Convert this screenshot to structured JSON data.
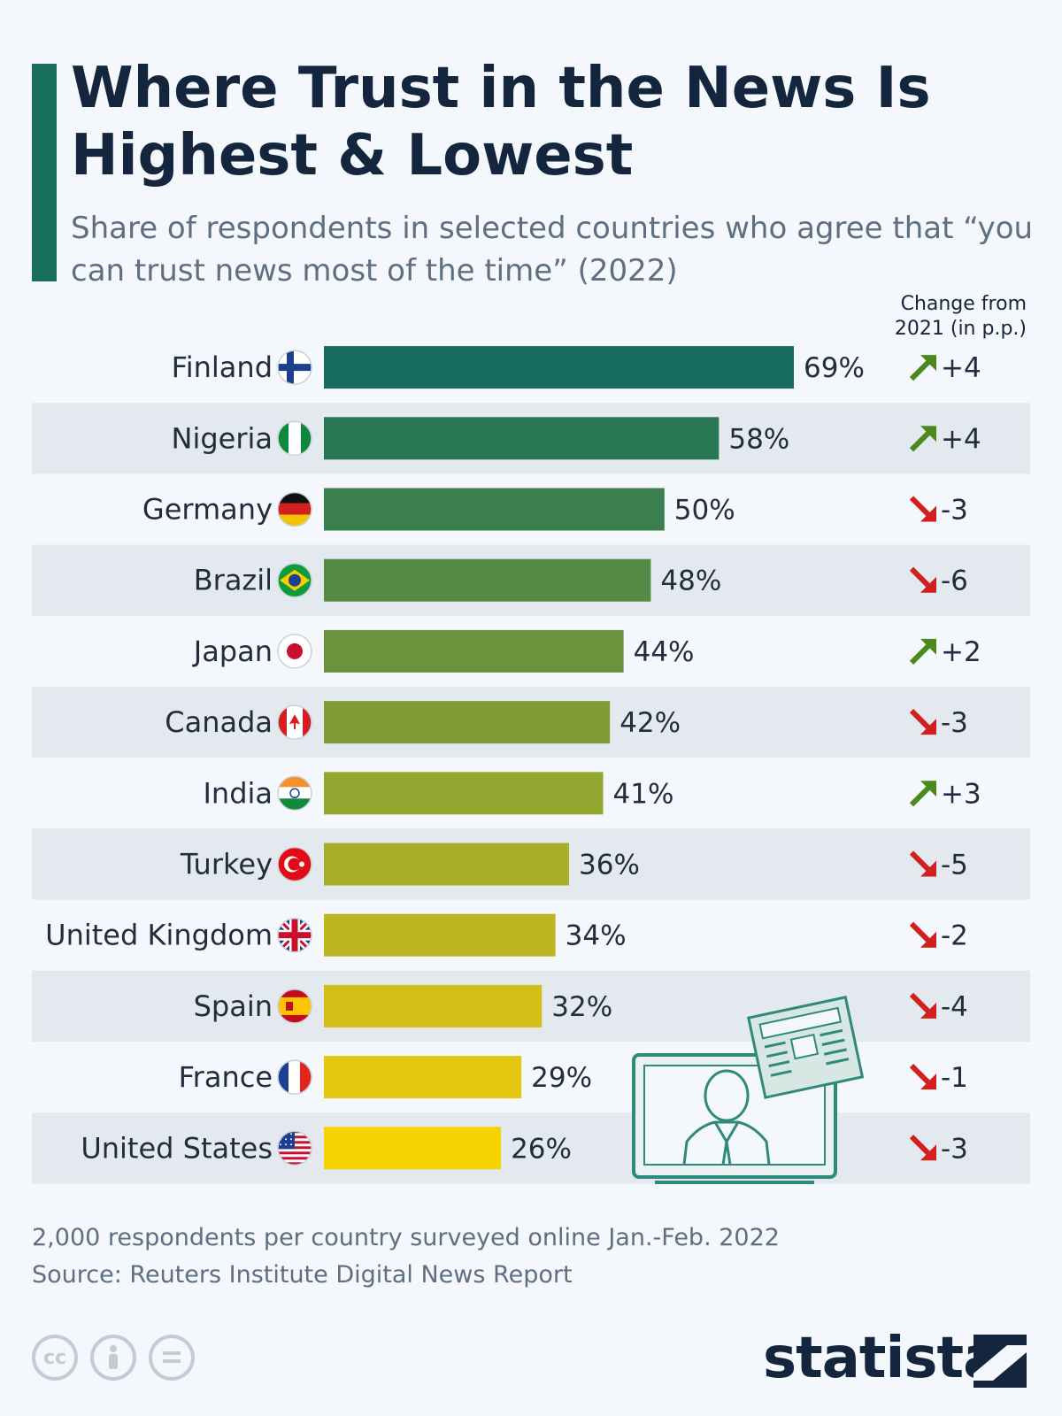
{
  "title": "Where Trust in the News Is Highest & Lowest",
  "subtitle": "Share of respondents in selected countries who agree that “you can trust news most of the time” (2022)",
  "change_header": "Change from 2021 (in p.p.)",
  "footnote": "2,000 respondents per country surveyed online Jan.-Feb. 2022",
  "source": "Source: Reuters Institute Digital News Report",
  "brand": "statista",
  "license_icons": [
    "cc-icon",
    "attribution-icon",
    "no-derivatives-icon"
  ],
  "colors": {
    "accent": "#1a6e5e",
    "up": "#4a8a1c",
    "down": "#d21f1f",
    "stripe": "#e4e9ef"
  },
  "chart_data": {
    "type": "bar",
    "orientation": "horizontal",
    "unit": "%",
    "categories": [
      "Finland",
      "Nigeria",
      "Germany",
      "Brazil",
      "Japan",
      "Canada",
      "India",
      "Turkey",
      "United Kingdom",
      "Spain",
      "France",
      "United States"
    ],
    "values": [
      69,
      58,
      50,
      48,
      44,
      42,
      41,
      36,
      34,
      32,
      29,
      26
    ],
    "change": [
      "+4",
      "+4",
      "-3",
      "-6",
      "+2",
      "-3",
      "+3",
      "-5",
      "-2",
      "-4",
      "-1",
      "-3"
    ],
    "bar_colors": [
      "#176b5c",
      "#2a7756",
      "#3b7f4e",
      "#548a46",
      "#6a933e",
      "#7f9c36",
      "#93a62f",
      "#a9ae28",
      "#bdb521",
      "#d2bd19",
      "#e3c710",
      "#f6d300"
    ],
    "flags": [
      "finland-flag-icon",
      "nigeria-flag-icon",
      "germany-flag-icon",
      "brazil-flag-icon",
      "japan-flag-icon",
      "canada-flag-icon",
      "india-flag-icon",
      "turkey-flag-icon",
      "united-kingdom-flag-icon",
      "spain-flag-icon",
      "france-flag-icon",
      "united-states-flag-icon"
    ],
    "xlim": [
      0,
      69
    ]
  }
}
